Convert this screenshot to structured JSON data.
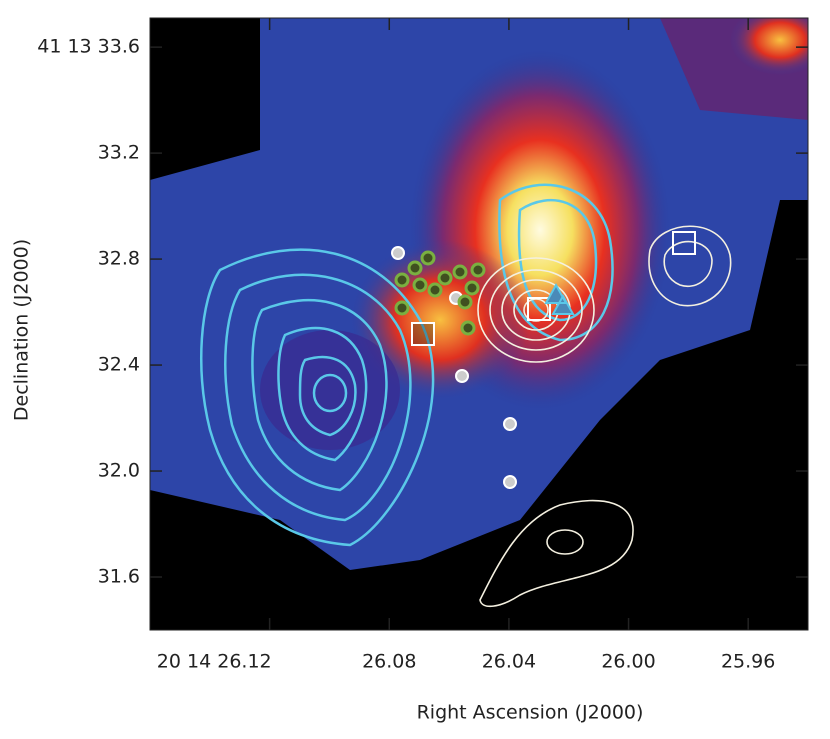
{
  "chart_data": {
    "type": "image",
    "xlabel": "Right Ascension (J2000)",
    "ylabel": "Declination (J2000)",
    "xlim": [
      26.16,
      25.94
    ],
    "xticks": [
      {
        "value": 26.12,
        "label": "20 14 26.12"
      },
      26.08,
      26.04,
      {
        "value": 26.0,
        "label": "26.00"
      },
      25.96
    ],
    "ylim": [
      31.4,
      33.71
    ],
    "yticks": [
      {
        "value": 33.6,
        "label": "41 13 33.6"
      },
      33.2,
      32.8,
      32.4,
      {
        "value": 32.0,
        "label": "32.0"
      },
      31.6
    ]
  }
}
